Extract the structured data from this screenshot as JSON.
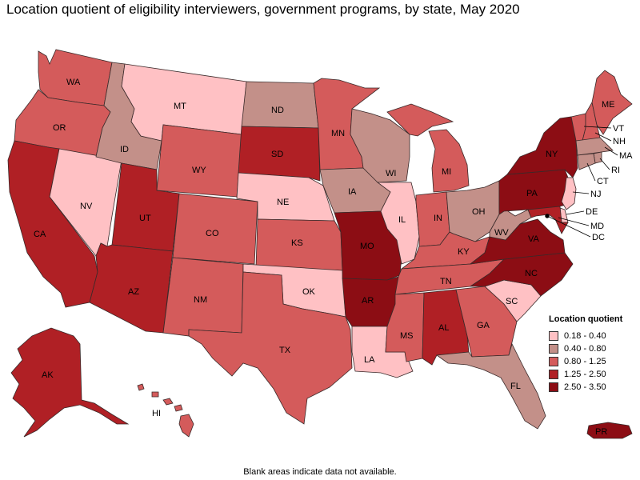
{
  "title": "Location quotient of eligibility interviewers, government programs, by state, May 2020",
  "footnote": "Blank areas indicate data not available.",
  "colors": {
    "c1": "#ffc1c4",
    "c2": "#c39089",
    "c3": "#d45b5b",
    "c4": "#b02025",
    "c5": "#8c0d14",
    "border": "#3a2a2a"
  },
  "legend": {
    "title": "Location quotient",
    "items": [
      {
        "label": "0.18 - 0.40",
        "color": "#ffc1c4"
      },
      {
        "label": "0.40 - 0.80",
        "color": "#c39089"
      },
      {
        "label": "0.80 - 1.25",
        "color": "#d45b5b"
      },
      {
        "label": "1.25 - 2.50",
        "color": "#b02025"
      },
      {
        "label": "2.50 - 3.50",
        "color": "#8c0d14"
      }
    ]
  },
  "states": {
    "WA": {
      "label": "WA",
      "class": 3
    },
    "OR": {
      "label": "OR",
      "class": 3
    },
    "CA": {
      "label": "CA",
      "class": 4
    },
    "NV": {
      "label": "NV",
      "class": 1
    },
    "ID": {
      "label": "ID",
      "class": 2
    },
    "MT": {
      "label": "MT",
      "class": 1
    },
    "WY": {
      "label": "WY",
      "class": 3
    },
    "UT": {
      "label": "UT",
      "class": 4
    },
    "AZ": {
      "label": "AZ",
      "class": 4
    },
    "CO": {
      "label": "CO",
      "class": 3
    },
    "NM": {
      "label": "NM",
      "class": 3
    },
    "ND": {
      "label": "ND",
      "class": 2
    },
    "SD": {
      "label": "SD",
      "class": 4
    },
    "NE": {
      "label": "NE",
      "class": 1
    },
    "KS": {
      "label": "KS",
      "class": 3
    },
    "OK": {
      "label": "OK",
      "class": 1
    },
    "TX": {
      "label": "TX",
      "class": 3
    },
    "MN": {
      "label": "MN",
      "class": 3
    },
    "IA": {
      "label": "IA",
      "class": 2
    },
    "MO": {
      "label": "MO",
      "class": 5
    },
    "AR": {
      "label": "AR",
      "class": 5
    },
    "LA": {
      "label": "LA",
      "class": 1
    },
    "WI": {
      "label": "WI",
      "class": 2
    },
    "IL": {
      "label": "IL",
      "class": 1
    },
    "MI": {
      "label": "MI",
      "class": 3
    },
    "IN": {
      "label": "IN",
      "class": 3
    },
    "OH": {
      "label": "OH",
      "class": 2
    },
    "KY": {
      "label": "KY",
      "class": 3
    },
    "TN": {
      "label": "TN",
      "class": 3
    },
    "MS": {
      "label": "MS",
      "class": 3
    },
    "AL": {
      "label": "AL",
      "class": 4
    },
    "GA": {
      "label": "GA",
      "class": 3
    },
    "FL": {
      "label": "FL",
      "class": 2
    },
    "SC": {
      "label": "SC",
      "class": 1
    },
    "NC": {
      "label": "NC",
      "class": 5
    },
    "VA": {
      "label": "VA",
      "class": 5
    },
    "WV": {
      "label": "WV",
      "class": 2
    },
    "PA": {
      "label": "PA",
      "class": 5
    },
    "NY": {
      "label": "NY",
      "class": 5
    },
    "ME": {
      "label": "ME",
      "class": 3
    },
    "VT": {
      "label": "VT",
      "class": 3
    },
    "NH": {
      "label": "NH",
      "class": 3
    },
    "MA": {
      "label": "MA",
      "class": 2
    },
    "RI": {
      "label": "RI",
      "class": 2
    },
    "CT": {
      "label": "CT",
      "class": 2
    },
    "NJ": {
      "label": "NJ",
      "class": 1
    },
    "DE": {
      "label": "DE",
      "class": 1
    },
    "MD": {
      "label": "MD",
      "class": 4
    },
    "DC": {
      "label": "DC",
      "class": 5
    },
    "AK": {
      "label": "AK",
      "class": 4
    },
    "HI": {
      "label": "HI",
      "class": 3
    },
    "PR": {
      "label": "PR",
      "class": 5
    }
  }
}
